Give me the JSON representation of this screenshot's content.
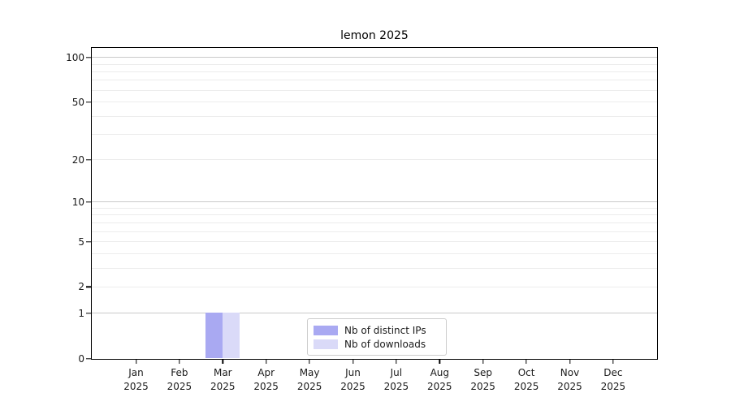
{
  "chart_data": {
    "type": "bar",
    "title": "lemon 2025",
    "categories": [
      "Jan 2025",
      "Feb 2025",
      "Mar 2025",
      "Apr 2025",
      "May 2025",
      "Jun 2025",
      "Jul 2025",
      "Aug 2025",
      "Sep 2025",
      "Oct 2025",
      "Nov 2025",
      "Dec 2025"
    ],
    "series": [
      {
        "name": "Nb of distinct IPs",
        "color": "#a9a9f2",
        "values": [
          0,
          0,
          1,
          0,
          0,
          0,
          0,
          0,
          0,
          0,
          0,
          0
        ]
      },
      {
        "name": "Nb of downloads",
        "color": "#dadaf8",
        "values": [
          0,
          0,
          1,
          0,
          0,
          0,
          0,
          0,
          0,
          0,
          0,
          0
        ]
      }
    ],
    "xlabel": "",
    "ylabel": "",
    "yscale": "log1p",
    "yticks": [
      0,
      1,
      2,
      5,
      10,
      20,
      50,
      100
    ],
    "ylim": [
      0,
      115
    ],
    "grid": true,
    "legend_position": "lower center",
    "colors": {
      "grid_major": "#c9c9c9",
      "grid_minor": "#ececec",
      "spine": "#000000",
      "text": "#1a1a1a",
      "legend_border": "#cccccc",
      "background": "#ffffff"
    }
  }
}
